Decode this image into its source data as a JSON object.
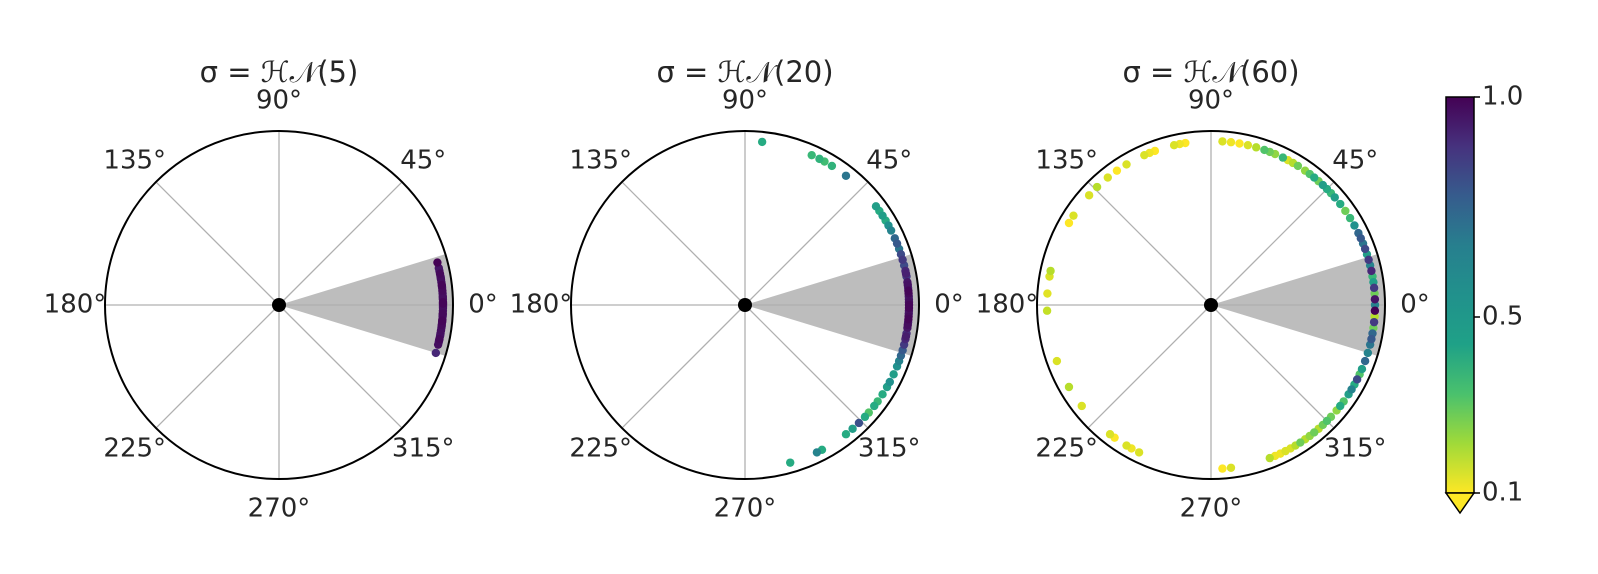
{
  "chart_data": {
    "type": "scatter",
    "projection": "polar",
    "angle_unit": "degrees",
    "radius": 1,
    "grid": true,
    "theta_ticks": [
      "0°",
      "45°",
      "90°",
      "135°",
      "180°",
      "225°",
      "270°",
      "315°"
    ],
    "shaded_sector": {
      "from_deg": -17,
      "to_deg": 17,
      "color": "#bdbdbd"
    },
    "center_marker": true,
    "colorbar": {
      "colormap": "viridis_r",
      "ticks": [
        "1.0",
        "0.5",
        "0.1"
      ],
      "tick_values": [
        1.0,
        0.5,
        0.1
      ],
      "min": 0.1,
      "max": 1.0,
      "extend": "min",
      "location": "right"
    },
    "panels": [
      {
        "title": "σ = ℋ𝒩(5)",
        "points": [
          [
            15,
            1.0
          ],
          [
            13,
            0.95
          ],
          [
            12,
            0.95
          ],
          [
            11,
            0.98
          ],
          [
            10,
            0.95
          ],
          [
            9,
            0.97
          ],
          [
            8,
            0.95
          ],
          [
            7,
            0.99
          ],
          [
            6,
            0.96
          ],
          [
            5,
            0.98
          ],
          [
            4,
            0.95
          ],
          [
            3,
            0.97
          ],
          [
            2,
            0.96
          ],
          [
            1,
            0.99
          ],
          [
            0,
            0.95
          ],
          [
            -1,
            0.97
          ],
          [
            -2,
            0.96
          ],
          [
            -3,
            0.98
          ],
          [
            -4,
            0.95
          ],
          [
            -5,
            0.97
          ],
          [
            -6,
            0.96
          ],
          [
            -7,
            0.98
          ],
          [
            -8,
            0.95
          ],
          [
            -9,
            0.97
          ],
          [
            -10,
            0.96
          ],
          [
            -11,
            0.95
          ],
          [
            -12,
            0.98
          ],
          [
            -13,
            0.95
          ],
          [
            -14,
            0.97
          ],
          [
            -17,
            0.9
          ],
          [
            9.5,
            0.94
          ],
          [
            6.5,
            0.93
          ],
          [
            2.5,
            0.92
          ],
          [
            -0.5,
            0.93
          ],
          [
            -3.5,
            0.94
          ],
          [
            -7.5,
            0.93
          ],
          [
            -10.5,
            0.92
          ],
          [
            -12.5,
            0.94
          ],
          [
            0.5,
            0.99
          ],
          [
            -5.5,
            0.99
          ]
        ]
      },
      {
        "title": "σ = ℋ𝒩(20)",
        "points": [
          [
            84,
            0.45
          ],
          [
            66,
            0.4
          ],
          [
            63,
            0.42
          ],
          [
            61,
            0.38
          ],
          [
            58,
            0.42
          ],
          [
            52,
            0.65
          ],
          [
            37,
            0.5
          ],
          [
            35,
            0.45
          ],
          [
            33,
            0.5
          ],
          [
            31,
            0.45
          ],
          [
            29,
            0.55
          ],
          [
            27,
            0.6
          ],
          [
            24,
            0.7
          ],
          [
            22,
            0.75
          ],
          [
            20,
            0.65
          ],
          [
            18,
            0.8
          ],
          [
            16,
            0.85
          ],
          [
            14,
            0.8
          ],
          [
            12,
            0.9
          ],
          [
            10,
            0.85
          ],
          [
            8,
            0.95
          ],
          [
            6,
            0.9
          ],
          [
            4,
            0.98
          ],
          [
            2,
            0.95
          ],
          [
            0,
            0.99
          ],
          [
            -2,
            0.96
          ],
          [
            -4,
            0.98
          ],
          [
            -6,
            0.92
          ],
          [
            -8,
            0.95
          ],
          [
            -10,
            0.88
          ],
          [
            -12,
            0.9
          ],
          [
            -14,
            0.85
          ],
          [
            -16,
            0.75
          ],
          [
            -18,
            0.7
          ],
          [
            -20,
            0.6
          ],
          [
            -22,
            0.55
          ],
          [
            -25,
            0.5
          ],
          [
            -28,
            0.55
          ],
          [
            -30,
            0.5
          ],
          [
            -33,
            0.45
          ],
          [
            -36,
            0.4
          ],
          [
            -38,
            0.45
          ],
          [
            -41,
            0.35
          ],
          [
            -43,
            0.45
          ],
          [
            -46,
            0.78
          ],
          [
            -49,
            0.5
          ],
          [
            -52,
            0.45
          ],
          [
            -62,
            0.45
          ],
          [
            -64,
            0.6
          ],
          [
            -74,
            0.45
          ],
          [
            1,
            0.97
          ],
          [
            -1,
            0.99
          ],
          [
            3,
            0.93
          ],
          [
            -3,
            0.94
          ],
          [
            7,
            0.96
          ],
          [
            -7,
            0.97
          ],
          [
            11,
            0.92
          ],
          [
            -11,
            0.93
          ],
          [
            5,
            0.99
          ],
          [
            -5,
            0.99
          ]
        ]
      },
      {
        "title": "σ = ℋ𝒩(60)",
        "points": [
          [
            138,
            0.15
          ],
          [
            134,
            0.2
          ],
          [
            129,
            0.15
          ],
          [
            125,
            0.1
          ],
          [
            121,
            0.15
          ],
          [
            114,
            0.15
          ],
          [
            112,
            0.12
          ],
          [
            110,
            0.1
          ],
          [
            103,
            0.15
          ],
          [
            101,
            0.12
          ],
          [
            99,
            0.1
          ],
          [
            86,
            0.15
          ],
          [
            83,
            0.12
          ],
          [
            80,
            0.1
          ],
          [
            77,
            0.15
          ],
          [
            74,
            0.2
          ],
          [
            71,
            0.35
          ],
          [
            69,
            0.3
          ],
          [
            67,
            0.25
          ],
          [
            64,
            0.4
          ],
          [
            62,
            0.15
          ],
          [
            60,
            0.2
          ],
          [
            58,
            0.3
          ],
          [
            55,
            0.25
          ],
          [
            53,
            0.35
          ],
          [
            51,
            0.45
          ],
          [
            49,
            0.3
          ],
          [
            47,
            0.5
          ],
          [
            45,
            0.45
          ],
          [
            43,
            0.4
          ],
          [
            41,
            0.5
          ],
          [
            38,
            0.45
          ],
          [
            35,
            0.3
          ],
          [
            32,
            0.4
          ],
          [
            29,
            0.55
          ],
          [
            26,
            0.7
          ],
          [
            24,
            0.75
          ],
          [
            22,
            0.65
          ],
          [
            20,
            0.8
          ],
          [
            18,
            0.5
          ],
          [
            16,
            0.85
          ],
          [
            14,
            0.6
          ],
          [
            12,
            0.9
          ],
          [
            10,
            0.4
          ],
          [
            8,
            0.5
          ],
          [
            6,
            0.85
          ],
          [
            4,
            0.3
          ],
          [
            2,
            0.95
          ],
          [
            0,
            0.6
          ],
          [
            -2,
            1.0
          ],
          [
            -4,
            0.2
          ],
          [
            -6,
            0.85
          ],
          [
            -8,
            0.3
          ],
          [
            -10,
            0.7
          ],
          [
            -12,
            0.75
          ],
          [
            -14,
            0.65
          ],
          [
            -17,
            0.6
          ],
          [
            -20,
            0.7
          ],
          [
            -23,
            0.5
          ],
          [
            -25,
            0.35
          ],
          [
            -27,
            0.8
          ],
          [
            -29,
            0.45
          ],
          [
            -31,
            0.6
          ],
          [
            -33,
            0.5
          ],
          [
            -36,
            0.35
          ],
          [
            -38,
            0.45
          ],
          [
            -40,
            0.25
          ],
          [
            -43,
            0.3
          ],
          [
            -45,
            0.35
          ],
          [
            -47,
            0.3
          ],
          [
            -49,
            0.2
          ],
          [
            -51,
            0.3
          ],
          [
            -53,
            0.25
          ],
          [
            -55,
            0.2
          ],
          [
            -57,
            0.3
          ],
          [
            -59,
            0.2
          ],
          [
            -61,
            0.15
          ],
          [
            -63,
            0.15
          ],
          [
            -65,
            0.12
          ],
          [
            -67,
            0.12
          ],
          [
            -69,
            0.2
          ],
          [
            -83,
            0.15
          ],
          [
            -86,
            0.1
          ],
          [
            -116,
            0.15
          ],
          [
            -119,
            0.12
          ],
          [
            -121,
            0.15
          ],
          [
            -126,
            0.1
          ],
          [
            -128,
            0.15
          ],
          [
            -142,
            0.15
          ],
          [
            -150,
            0.2
          ],
          [
            -160,
            0.15
          ],
          [
            170,
            0.15
          ],
          [
            168,
            0.2
          ],
          [
            150,
            0.1
          ],
          [
            147,
            0.15
          ],
          [
            -178,
            0.18
          ],
          [
            176,
            0.14
          ]
        ]
      }
    ]
  }
}
